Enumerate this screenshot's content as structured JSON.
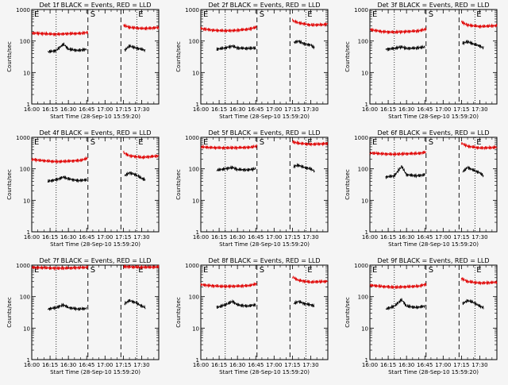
{
  "colors": {
    "background": "#f5f5f5",
    "events": "#000000",
    "lld": "#e00000"
  },
  "chart_data": [
    {
      "type": "line",
      "title": "Det 1f BLACK = Events, RED = LLD",
      "xlabel": "Start Time (28-Sep-10 15:59:20)",
      "ylabel": "Counts/sec",
      "x_ticks": [
        "16:00",
        "16:15",
        "16:30",
        "16:45",
        "17:00",
        "17:15",
        "17:30"
      ],
      "y_ticks": [
        "1",
        "10",
        "100",
        "1000"
      ],
      "ylim": [
        1,
        1000
      ],
      "yscale": "log",
      "marker_labels": [
        "E",
        "S",
        "E"
      ],
      "dashed_lines_min": [
        46,
        73
      ],
      "dotted_lines_min": [
        20,
        86
      ],
      "series": [
        {
          "color": "red",
          "x_min": [
            0,
            10,
            20,
            30,
            40,
            46
          ],
          "y": [
            180,
            170,
            165,
            170,
            175,
            190
          ]
        },
        {
          "color": "red",
          "x_min": [
            75,
            80,
            90,
            100,
            104
          ],
          "y": [
            320,
            270,
            250,
            260,
            270
          ]
        },
        {
          "color": "black",
          "x_min": [
            13,
            20,
            26,
            30,
            38,
            45
          ],
          "y": [
            45,
            50,
            80,
            55,
            50,
            55
          ]
        },
        {
          "color": "black",
          "x_min": [
            76,
            80,
            85,
            90,
            93
          ],
          "y": [
            50,
            70,
            60,
            55,
            50
          ]
        }
      ]
    },
    {
      "type": "line",
      "title": "Det 2f BLACK = Events, RED = LLD",
      "xlabel": "Start Time (28-Sep-10 15:59:20)",
      "ylabel": "Counts/sec",
      "x_ticks": [
        "16:00",
        "16:15",
        "16:30",
        "16:45",
        "17:00",
        "17:15",
        "17:30"
      ],
      "y_ticks": [
        "1",
        "10",
        "100",
        "1000"
      ],
      "ylim": [
        1,
        1000
      ],
      "yscale": "log",
      "marker_labels": [
        "E",
        "S",
        "E"
      ],
      "dashed_lines_min": [
        46,
        73
      ],
      "dotted_lines_min": [
        20,
        86
      ],
      "series": [
        {
          "color": "red",
          "x_min": [
            0,
            10,
            20,
            30,
            40,
            46
          ],
          "y": [
            250,
            220,
            210,
            220,
            240,
            280
          ]
        },
        {
          "color": "red",
          "x_min": [
            75,
            80,
            90,
            100,
            104
          ],
          "y": [
            450,
            380,
            320,
            330,
            350
          ]
        },
        {
          "color": "black",
          "x_min": [
            13,
            20,
            26,
            30,
            38,
            45
          ],
          "y": [
            55,
            60,
            70,
            60,
            58,
            60
          ]
        },
        {
          "color": "black",
          "x_min": [
            76,
            80,
            85,
            90,
            93
          ],
          "y": [
            90,
            100,
            80,
            75,
            60
          ]
        }
      ]
    },
    {
      "type": "line",
      "title": "Det 3f BLACK = Events, RED = LLD",
      "xlabel": "Start Time (28-Sep-10 15:59:20)",
      "ylabel": "Counts/sec",
      "x_ticks": [
        "16:00",
        "16:15",
        "16:30",
        "16:45",
        "17:00",
        "17:15",
        "17:30"
      ],
      "y_ticks": [
        "1",
        "10",
        "100",
        "1000"
      ],
      "ylim": [
        1,
        1000
      ],
      "yscale": "log",
      "marker_labels": [
        "E",
        "S",
        "E"
      ],
      "dashed_lines_min": [
        46,
        73
      ],
      "dotted_lines_min": [
        20,
        86
      ],
      "series": [
        {
          "color": "red",
          "x_min": [
            0,
            10,
            20,
            30,
            40,
            46
          ],
          "y": [
            230,
            200,
            190,
            200,
            210,
            240
          ]
        },
        {
          "color": "red",
          "x_min": [
            75,
            80,
            90,
            100,
            104
          ],
          "y": [
            400,
            320,
            290,
            300,
            310
          ]
        },
        {
          "color": "black",
          "x_min": [
            13,
            20,
            26,
            30,
            38,
            45
          ],
          "y": [
            55,
            58,
            65,
            58,
            60,
            65
          ]
        },
        {
          "color": "black",
          "x_min": [
            76,
            80,
            85,
            90,
            93
          ],
          "y": [
            85,
            95,
            80,
            70,
            60
          ]
        }
      ]
    },
    {
      "type": "line",
      "title": "Det 4f BLACK = Events, RED = LLD",
      "xlabel": "Start Time (28-Sep-10 15:59:20)",
      "ylabel": "Counts/sec",
      "x_ticks": [
        "16:00",
        "16:15",
        "16:30",
        "16:45",
        "17:00",
        "17:15",
        "17:30"
      ],
      "y_ticks": [
        "1",
        "10",
        "100",
        "1000"
      ],
      "ylim": [
        1,
        1000
      ],
      "yscale": "log",
      "marker_labels": [
        "E",
        "S",
        "E"
      ],
      "dashed_lines_min": [
        46,
        73
      ],
      "dotted_lines_min": [
        20,
        86
      ],
      "series": [
        {
          "color": "red",
          "x_min": [
            0,
            10,
            20,
            30,
            40,
            46
          ],
          "y": [
            200,
            180,
            170,
            175,
            185,
            220
          ]
        },
        {
          "color": "red",
          "x_min": [
            75,
            80,
            90,
            100,
            104
          ],
          "y": [
            330,
            260,
            230,
            250,
            260
          ]
        },
        {
          "color": "black",
          "x_min": [
            13,
            20,
            26,
            30,
            38,
            45
          ],
          "y": [
            40,
            45,
            55,
            48,
            42,
            45
          ]
        },
        {
          "color": "black",
          "x_min": [
            76,
            80,
            85,
            90,
            93
          ],
          "y": [
            60,
            75,
            65,
            50,
            45
          ]
        }
      ]
    },
    {
      "type": "line",
      "title": "Det 5f BLACK = Events, RED = LLD",
      "xlabel": "Start Time (28-Sep-10 15:59:20)",
      "ylabel": "Counts/sec",
      "x_ticks": [
        "16:00",
        "16:15",
        "16:30",
        "16:45",
        "17:00",
        "17:15",
        "17:30"
      ],
      "y_ticks": [
        "1",
        "10",
        "100",
        "1000"
      ],
      "ylim": [
        1,
        1000
      ],
      "yscale": "log",
      "marker_labels": [
        "E",
        "S",
        "E"
      ],
      "dashed_lines_min": [
        46,
        73
      ],
      "dotted_lines_min": [
        20,
        86
      ],
      "series": [
        {
          "color": "red",
          "x_min": [
            0,
            10,
            20,
            30,
            40,
            46
          ],
          "y": [
            500,
            470,
            460,
            470,
            480,
            520
          ]
        },
        {
          "color": "red",
          "x_min": [
            75,
            80,
            90,
            100,
            104
          ],
          "y": [
            720,
            650,
            600,
            620,
            640
          ]
        },
        {
          "color": "black",
          "x_min": [
            13,
            20,
            26,
            30,
            38,
            45
          ],
          "y": [
            90,
            100,
            110,
            95,
            92,
            100
          ]
        },
        {
          "color": "black",
          "x_min": [
            76,
            80,
            85,
            90,
            93
          ],
          "y": [
            120,
            130,
            110,
            100,
            85
          ]
        }
      ]
    },
    {
      "type": "line",
      "title": "Det 6f BLACK = Events, RED = LLD",
      "xlabel": "Start Time (28-Sep-10 15:59:20)",
      "ylabel": "Counts/sec",
      "x_ticks": [
        "16:00",
        "16:15",
        "16:30",
        "16:45",
        "17:00",
        "17:15",
        "17:30"
      ],
      "y_ticks": [
        "1",
        "10",
        "100",
        "1000"
      ],
      "ylim": [
        1,
        1000
      ],
      "yscale": "log",
      "marker_labels": [
        "E",
        "S",
        "E"
      ],
      "dashed_lines_min": [
        46,
        73
      ],
      "dotted_lines_min": [
        20,
        86
      ],
      "series": [
        {
          "color": "red",
          "x_min": [
            0,
            10,
            20,
            30,
            40,
            46
          ],
          "y": [
            320,
            300,
            290,
            300,
            310,
            340
          ]
        },
        {
          "color": "red",
          "x_min": [
            75,
            80,
            90,
            100,
            104
          ],
          "y": [
            650,
            520,
            460,
            470,
            480
          ]
        },
        {
          "color": "black",
          "x_min": [
            13,
            20,
            26,
            30,
            38,
            45
          ],
          "y": [
            55,
            60,
            120,
            65,
            60,
            65
          ]
        },
        {
          "color": "black",
          "x_min": [
            76,
            80,
            85,
            90,
            93
          ],
          "y": [
            80,
            110,
            90,
            75,
            60
          ]
        }
      ]
    },
    {
      "type": "line",
      "title": "Det 7f BLACK = Events, RED = LLD",
      "xlabel": "Start Time (28-Sep-10 15:59:20)",
      "ylabel": "Counts/sec",
      "x_ticks": [
        "16:00",
        "16:15",
        "16:30",
        "16:45",
        "17:00",
        "17:15",
        "17:30"
      ],
      "y_ticks": [
        "1",
        "10",
        "100",
        "1000"
      ],
      "ylim": [
        1,
        1000
      ],
      "yscale": "log",
      "marker_labels": [
        "E",
        "S",
        "E"
      ],
      "dashed_lines_min": [
        46,
        73
      ],
      "dotted_lines_min": [
        20,
        86
      ],
      "series": [
        {
          "color": "red",
          "x_min": [
            0,
            10,
            20,
            30,
            40,
            46
          ],
          "y": [
            850,
            820,
            800,
            810,
            830,
            860
          ]
        },
        {
          "color": "red",
          "x_min": [
            75,
            80,
            90,
            100,
            104
          ],
          "y": [
            900,
            880,
            850,
            870,
            880
          ]
        },
        {
          "color": "black",
          "x_min": [
            13,
            20,
            26,
            30,
            38,
            45
          ],
          "y": [
            40,
            45,
            55,
            45,
            40,
            42
          ]
        },
        {
          "color": "black",
          "x_min": [
            76,
            80,
            85,
            90,
            93
          ],
          "y": [
            60,
            75,
            65,
            50,
            45
          ]
        }
      ]
    },
    {
      "type": "line",
      "title": "Det 8f BLACK = Events, RED = LLD",
      "xlabel": "Start Time (28-Sep-10 15:59:20)",
      "ylabel": "Counts/sec",
      "x_ticks": [
        "16:00",
        "16:15",
        "16:30",
        "16:45",
        "17:00",
        "17:15",
        "17:30"
      ],
      "y_ticks": [
        "1",
        "10",
        "100",
        "1000"
      ],
      "ylim": [
        1,
        1000
      ],
      "yscale": "log",
      "marker_labels": [
        "E",
        "S",
        "E"
      ],
      "dashed_lines_min": [
        46,
        73
      ],
      "dotted_lines_min": [
        20,
        86
      ],
      "series": [
        {
          "color": "red",
          "x_min": [
            0,
            10,
            20,
            30,
            40,
            46
          ],
          "y": [
            240,
            220,
            210,
            215,
            225,
            260
          ]
        },
        {
          "color": "red",
          "x_min": [
            75,
            80,
            90,
            100,
            104
          ],
          "y": [
            420,
            330,
            290,
            300,
            310
          ]
        },
        {
          "color": "black",
          "x_min": [
            13,
            20,
            26,
            30,
            38,
            45
          ],
          "y": [
            45,
            55,
            70,
            55,
            50,
            55
          ]
        },
        {
          "color": "black",
          "x_min": [
            76,
            80,
            85,
            90,
            93
          ],
          "y": [
            60,
            70,
            60,
            55,
            50
          ]
        }
      ]
    },
    {
      "type": "line",
      "title": "Det 9f BLACK = Events, RED = LLD",
      "xlabel": "Start Time (28-Sep-10 15:59:20)",
      "ylabel": "Counts/sec",
      "x_ticks": [
        "16:00",
        "16:15",
        "16:30",
        "16:45",
        "17:00",
        "17:15",
        "17:30"
      ],
      "y_ticks": [
        "1",
        "10",
        "100",
        "1000"
      ],
      "ylim": [
        1,
        1000
      ],
      "yscale": "log",
      "marker_labels": [
        "E",
        "S",
        "E"
      ],
      "dashed_lines_min": [
        46,
        73
      ],
      "dotted_lines_min": [
        20,
        86
      ],
      "series": [
        {
          "color": "red",
          "x_min": [
            0,
            10,
            20,
            30,
            40,
            46
          ],
          "y": [
            230,
            210,
            200,
            205,
            215,
            250
          ]
        },
        {
          "color": "red",
          "x_min": [
            75,
            80,
            90,
            100,
            104
          ],
          "y": [
            380,
            300,
            270,
            280,
            290
          ]
        },
        {
          "color": "black",
          "x_min": [
            13,
            20,
            26,
            30,
            38,
            45
          ],
          "y": [
            40,
            50,
            80,
            50,
            45,
            50
          ]
        },
        {
          "color": "black",
          "x_min": [
            76,
            80,
            85,
            90,
            93
          ],
          "y": [
            60,
            75,
            65,
            50,
            45
          ]
        }
      ]
    }
  ]
}
